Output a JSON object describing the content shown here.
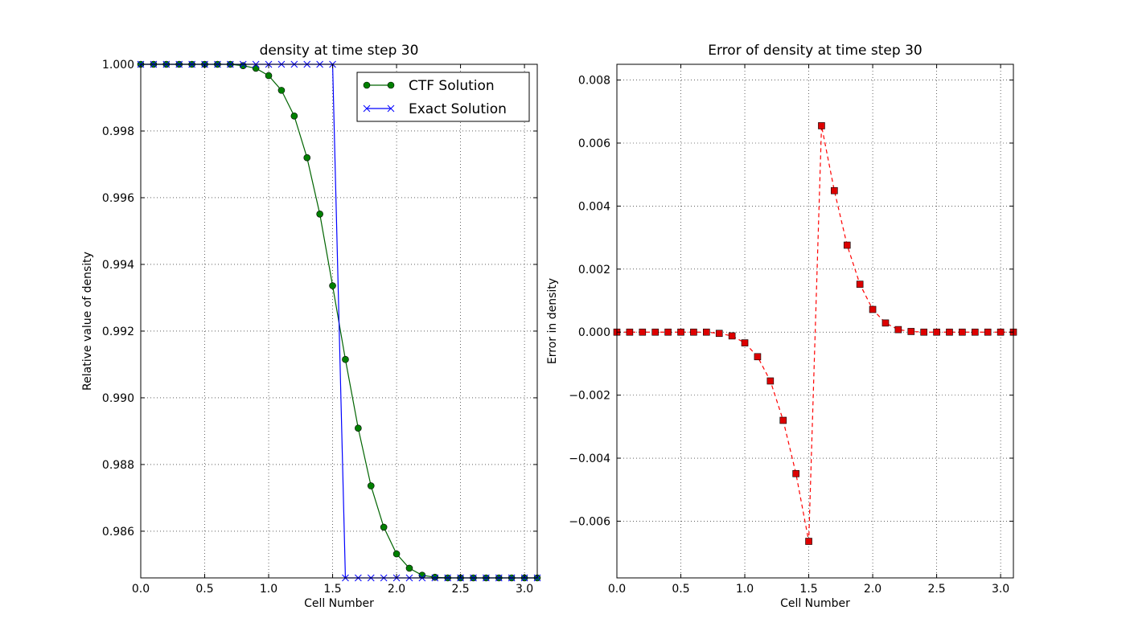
{
  "chart_data": [
    {
      "type": "line",
      "title": "density at time step 30",
      "xlabel": "Cell Number",
      "ylabel": "Relative value of density",
      "xlim": [
        0.0,
        3.1
      ],
      "ylim": [
        0.9846,
        1.0
      ],
      "xticks": [
        "0.0",
        "0.5",
        "1.0",
        "1.5",
        "2.0",
        "2.5",
        "3.0"
      ],
      "yticks": [
        "0.986",
        "0.988",
        "0.990",
        "0.992",
        "0.994",
        "0.996",
        "0.998",
        "1.000"
      ],
      "grid": true,
      "legend": "top-right",
      "x": [
        0.0,
        0.1,
        0.2,
        0.3,
        0.4,
        0.5,
        0.6,
        0.7,
        0.8,
        0.9,
        1.0,
        1.1,
        1.2,
        1.3,
        1.4,
        1.5,
        1.6,
        1.7,
        1.8,
        1.9,
        2.0,
        2.1,
        2.2,
        2.3,
        2.4,
        2.5,
        2.6,
        2.7,
        2.8,
        2.9,
        3.0,
        3.1
      ],
      "series": [
        {
          "name": "CTF Solution",
          "color": "#006400",
          "values": [
            1.0,
            1.0,
            1.0,
            1.0,
            1.0,
            1.0,
            1.0,
            1.0,
            0.99996,
            0.99988,
            0.99966,
            0.99922,
            0.99845,
            0.9972,
            0.99551,
            0.99336,
            0.99115,
            0.98909,
            0.98736,
            0.98612,
            0.98532,
            0.98489,
            0.98468,
            0.98462,
            0.9846,
            0.9846,
            0.9846,
            0.9846,
            0.9846,
            0.9846,
            0.9846,
            0.9846
          ]
        },
        {
          "name": "Exact Solution",
          "color": "#0000ff",
          "values": [
            1.0,
            1.0,
            1.0,
            1.0,
            1.0,
            1.0,
            1.0,
            1.0,
            1.0,
            1.0,
            1.0,
            1.0,
            1.0,
            1.0,
            1.0,
            1.0,
            0.9846,
            0.9846,
            0.9846,
            0.9846,
            0.9846,
            0.9846,
            0.9846,
            0.9846,
            0.9846,
            0.9846,
            0.9846,
            0.9846,
            0.9846,
            0.9846,
            0.9846,
            0.9846
          ]
        }
      ]
    },
    {
      "type": "line",
      "title": "Error of density at time step 30",
      "xlabel": "Cell Number",
      "ylabel": "Error in density",
      "xlim": [
        0.0,
        3.1
      ],
      "ylim": [
        -0.0078,
        0.0085
      ],
      "xticks": [
        "0.0",
        "0.5",
        "1.0",
        "1.5",
        "2.0",
        "2.5",
        "3.0"
      ],
      "yticks": [
        "−0.006",
        "−0.004",
        "−0.002",
        "0.000",
        "0.002",
        "0.004",
        "0.006",
        "0.008"
      ],
      "grid": true,
      "x": [
        0.0,
        0.1,
        0.2,
        0.3,
        0.4,
        0.5,
        0.6,
        0.7,
        0.8,
        0.9,
        1.0,
        1.1,
        1.2,
        1.3,
        1.4,
        1.5,
        1.6,
        1.7,
        1.8,
        1.9,
        2.0,
        2.1,
        2.2,
        2.3,
        2.4,
        2.5,
        2.6,
        2.7,
        2.8,
        2.9,
        3.0,
        3.1
      ],
      "series": [
        {
          "color": "#ff0000",
          "values": [
            0.0,
            0.0,
            0.0,
            0.0,
            0.0,
            0.0,
            0.0,
            0.0,
            -4e-05,
            -0.00012,
            -0.00034,
            -0.00078,
            -0.00155,
            -0.0028,
            -0.00449,
            -0.00664,
            0.00655,
            0.00449,
            0.00276,
            0.00152,
            0.00072,
            0.00029,
            8e-05,
            2e-05,
            0.0,
            0.0,
            0.0,
            0.0,
            0.0,
            0.0,
            0.0,
            0.0
          ]
        }
      ]
    }
  ]
}
